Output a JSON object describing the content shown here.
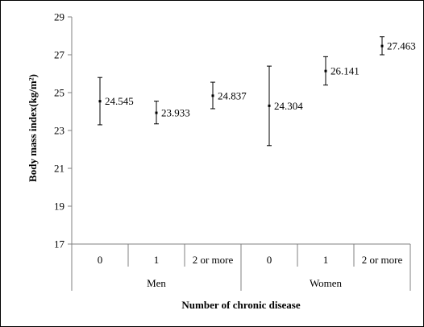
{
  "chart_data": {
    "type": "scatter",
    "categories": [
      "0",
      "1",
      "2 or more",
      "0",
      "1",
      "2 or more"
    ],
    "groups": [
      "Men",
      "Women"
    ],
    "group_sizes": [
      3,
      3
    ],
    "values": [
      24.545,
      23.933,
      24.837,
      24.304,
      26.141,
      27.463
    ],
    "data_labels": [
      "24.545",
      "23.933",
      "24.837",
      "24.304",
      "26.141",
      "27.463"
    ],
    "error_low": [
      23.3,
      23.35,
      24.15,
      22.2,
      25.4,
      27.0
    ],
    "error_high": [
      25.8,
      24.55,
      25.55,
      26.4,
      26.9,
      27.95
    ],
    "ylim": [
      17,
      29
    ],
    "yticks": [
      "17",
      "19",
      "21",
      "23",
      "25",
      "27",
      "29"
    ],
    "xlabel": "Number of chronic disease",
    "ylabel": "Body mass index(kg/m²)",
    "grid": false,
    "colors": {
      "marks": "#000000",
      "axis": "#808080"
    }
  }
}
